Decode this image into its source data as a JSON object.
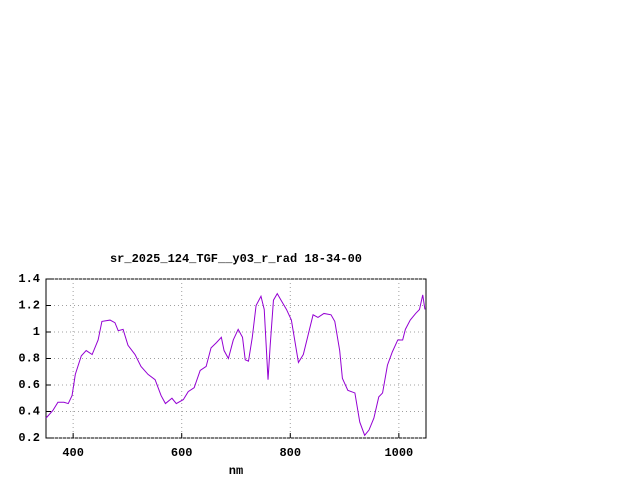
{
  "chart_data": {
    "type": "line",
    "title": "sr_2025_124_TGF__y03_r_rad 18-34-00",
    "x_label": "nm",
    "x": [
      350,
      363,
      372,
      383,
      391,
      398,
      404,
      415,
      424,
      435,
      446,
      453,
      468,
      477,
      483,
      492,
      501,
      514,
      525,
      538,
      551,
      562,
      570,
      582,
      590,
      603,
      612,
      623,
      634,
      645,
      654,
      664,
      673,
      678,
      686,
      695,
      704,
      712,
      717,
      723,
      730,
      737,
      746,
      752,
      759,
      763,
      769,
      776,
      783,
      793,
      802,
      815,
      824,
      833,
      842,
      851,
      862,
      875,
      882,
      891,
      896,
      906,
      919,
      928,
      937,
      945,
      954,
      963,
      970,
      979,
      988,
      998,
      1007,
      1012,
      1021,
      1031,
      1038,
      1044,
      1048
    ],
    "series": [
      {
        "color": "#9400d3",
        "values": [
          0.35,
          0.41,
          0.47,
          0.47,
          0.46,
          0.52,
          0.68,
          0.82,
          0.86,
          0.83,
          0.94,
          1.08,
          1.09,
          1.07,
          1.01,
          1.02,
          0.9,
          0.83,
          0.74,
          0.68,
          0.64,
          0.52,
          0.46,
          0.5,
          0.46,
          0.49,
          0.55,
          0.58,
          0.71,
          0.74,
          0.88,
          0.92,
          0.96,
          0.86,
          0.8,
          0.94,
          1.02,
          0.96,
          0.79,
          0.78,
          0.96,
          1.2,
          1.27,
          1.17,
          0.64,
          0.9,
          1.24,
          1.29,
          1.24,
          1.17,
          1.09,
          0.77,
          0.83,
          0.98,
          1.13,
          1.11,
          1.14,
          1.13,
          1.08,
          0.86,
          0.65,
          0.56,
          0.54,
          0.32,
          0.22,
          0.26,
          0.35,
          0.51,
          0.54,
          0.75,
          0.85,
          0.94,
          0.94,
          1.02,
          1.09,
          1.14,
          1.17,
          1.28,
          1.17
        ]
      }
    ],
    "xlim": [
      350,
      1050
    ],
    "xticks": [
      400,
      600,
      800,
      1000
    ],
    "ylim": [
      0.2,
      1.4
    ],
    "yticks": [
      0.2,
      0.4,
      0.6,
      0.8,
      1,
      1.2,
      1.4
    ],
    "grid": true
  }
}
